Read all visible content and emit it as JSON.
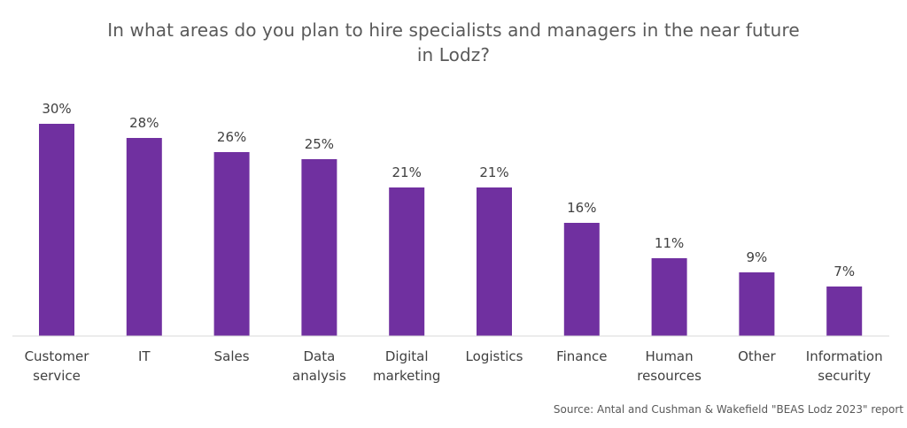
{
  "chart_data": {
    "type": "bar",
    "title": "In what areas do you plan to hire specialists and managers in the near future in Lodz?",
    "categories": [
      [
        "Customer",
        "service"
      ],
      [
        "IT"
      ],
      [
        "Sales"
      ],
      [
        "Data",
        "analysis"
      ],
      [
        "Digital",
        "marketing"
      ],
      [
        "Logistics"
      ],
      [
        "Finance"
      ],
      [
        "Human",
        "resources"
      ],
      [
        "Other"
      ],
      [
        "Information",
        "security"
      ]
    ],
    "values": [
      30,
      28,
      26,
      25,
      21,
      21,
      16,
      11,
      9,
      7
    ],
    "value_labels": [
      "30%",
      "28%",
      "26%",
      "25%",
      "21%",
      "21%",
      "16%",
      "11%",
      "9%",
      "7%"
    ],
    "ylim": [
      0,
      30
    ],
    "grid": false,
    "legend": "none",
    "bar_color": "#7030A0",
    "xlabel": "",
    "ylabel": ""
  },
  "source": "Source: Antal and Cushman & Wakefield \"BEAS Lodz 2023\" report"
}
